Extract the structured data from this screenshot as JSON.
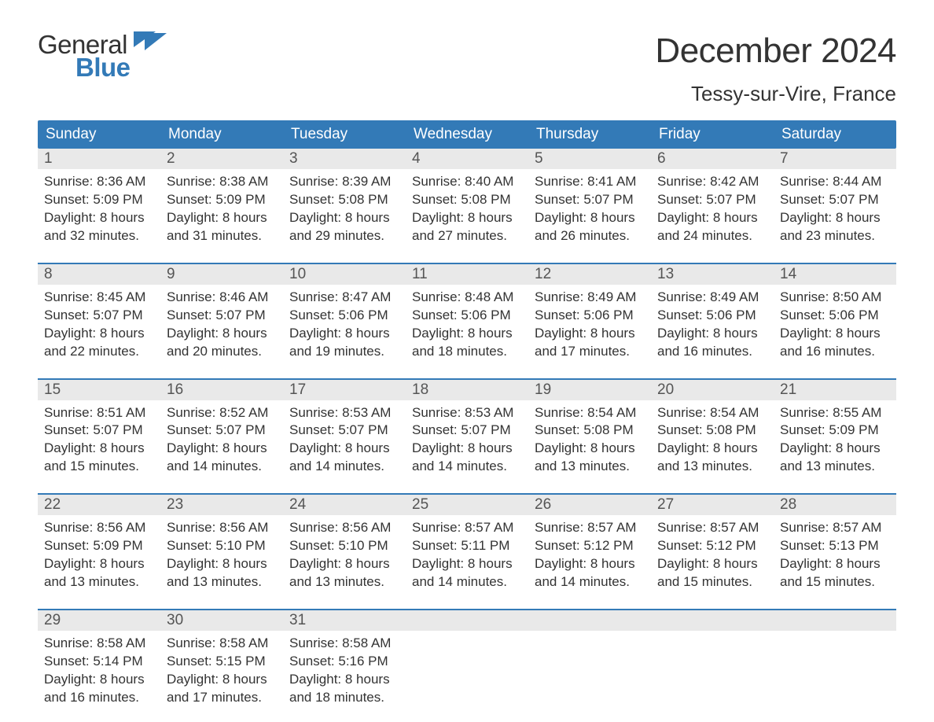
{
  "logo": {
    "line1": "General",
    "line2": "Blue",
    "text_color": "#333333",
    "accent_color": "#337ab7"
  },
  "title": {
    "month": "December 2024",
    "location": "Tessy-sur-Vire, France",
    "month_fontsize": 44,
    "location_fontsize": 26,
    "color": "#333333"
  },
  "colors": {
    "header_bg": "#337ab7",
    "header_text": "#ffffff",
    "daynum_bg": "#e9e9e9",
    "daynum_text": "#555555",
    "body_text": "#333333",
    "week_border": "#337ab7",
    "background": "#ffffff"
  },
  "layout": {
    "columns": 7,
    "rows": 5,
    "cell_fontsize": 17,
    "header_fontsize": 19,
    "daynum_fontsize": 19
  },
  "day_headers": [
    "Sunday",
    "Monday",
    "Tuesday",
    "Wednesday",
    "Thursday",
    "Friday",
    "Saturday"
  ],
  "weeks": [
    [
      {
        "num": "1",
        "sunrise": "Sunrise: 8:36 AM",
        "sunset": "Sunset: 5:09 PM",
        "daylight1": "Daylight: 8 hours",
        "daylight2": "and 32 minutes."
      },
      {
        "num": "2",
        "sunrise": "Sunrise: 8:38 AM",
        "sunset": "Sunset: 5:09 PM",
        "daylight1": "Daylight: 8 hours",
        "daylight2": "and 31 minutes."
      },
      {
        "num": "3",
        "sunrise": "Sunrise: 8:39 AM",
        "sunset": "Sunset: 5:08 PM",
        "daylight1": "Daylight: 8 hours",
        "daylight2": "and 29 minutes."
      },
      {
        "num": "4",
        "sunrise": "Sunrise: 8:40 AM",
        "sunset": "Sunset: 5:08 PM",
        "daylight1": "Daylight: 8 hours",
        "daylight2": "and 27 minutes."
      },
      {
        "num": "5",
        "sunrise": "Sunrise: 8:41 AM",
        "sunset": "Sunset: 5:07 PM",
        "daylight1": "Daylight: 8 hours",
        "daylight2": "and 26 minutes."
      },
      {
        "num": "6",
        "sunrise": "Sunrise: 8:42 AM",
        "sunset": "Sunset: 5:07 PM",
        "daylight1": "Daylight: 8 hours",
        "daylight2": "and 24 minutes."
      },
      {
        "num": "7",
        "sunrise": "Sunrise: 8:44 AM",
        "sunset": "Sunset: 5:07 PM",
        "daylight1": "Daylight: 8 hours",
        "daylight2": "and 23 minutes."
      }
    ],
    [
      {
        "num": "8",
        "sunrise": "Sunrise: 8:45 AM",
        "sunset": "Sunset: 5:07 PM",
        "daylight1": "Daylight: 8 hours",
        "daylight2": "and 22 minutes."
      },
      {
        "num": "9",
        "sunrise": "Sunrise: 8:46 AM",
        "sunset": "Sunset: 5:07 PM",
        "daylight1": "Daylight: 8 hours",
        "daylight2": "and 20 minutes."
      },
      {
        "num": "10",
        "sunrise": "Sunrise: 8:47 AM",
        "sunset": "Sunset: 5:06 PM",
        "daylight1": "Daylight: 8 hours",
        "daylight2": "and 19 minutes."
      },
      {
        "num": "11",
        "sunrise": "Sunrise: 8:48 AM",
        "sunset": "Sunset: 5:06 PM",
        "daylight1": "Daylight: 8 hours",
        "daylight2": "and 18 minutes."
      },
      {
        "num": "12",
        "sunrise": "Sunrise: 8:49 AM",
        "sunset": "Sunset: 5:06 PM",
        "daylight1": "Daylight: 8 hours",
        "daylight2": "and 17 minutes."
      },
      {
        "num": "13",
        "sunrise": "Sunrise: 8:49 AM",
        "sunset": "Sunset: 5:06 PM",
        "daylight1": "Daylight: 8 hours",
        "daylight2": "and 16 minutes."
      },
      {
        "num": "14",
        "sunrise": "Sunrise: 8:50 AM",
        "sunset": "Sunset: 5:06 PM",
        "daylight1": "Daylight: 8 hours",
        "daylight2": "and 16 minutes."
      }
    ],
    [
      {
        "num": "15",
        "sunrise": "Sunrise: 8:51 AM",
        "sunset": "Sunset: 5:07 PM",
        "daylight1": "Daylight: 8 hours",
        "daylight2": "and 15 minutes."
      },
      {
        "num": "16",
        "sunrise": "Sunrise: 8:52 AM",
        "sunset": "Sunset: 5:07 PM",
        "daylight1": "Daylight: 8 hours",
        "daylight2": "and 14 minutes."
      },
      {
        "num": "17",
        "sunrise": "Sunrise: 8:53 AM",
        "sunset": "Sunset: 5:07 PM",
        "daylight1": "Daylight: 8 hours",
        "daylight2": "and 14 minutes."
      },
      {
        "num": "18",
        "sunrise": "Sunrise: 8:53 AM",
        "sunset": "Sunset: 5:07 PM",
        "daylight1": "Daylight: 8 hours",
        "daylight2": "and 14 minutes."
      },
      {
        "num": "19",
        "sunrise": "Sunrise: 8:54 AM",
        "sunset": "Sunset: 5:08 PM",
        "daylight1": "Daylight: 8 hours",
        "daylight2": "and 13 minutes."
      },
      {
        "num": "20",
        "sunrise": "Sunrise: 8:54 AM",
        "sunset": "Sunset: 5:08 PM",
        "daylight1": "Daylight: 8 hours",
        "daylight2": "and 13 minutes."
      },
      {
        "num": "21",
        "sunrise": "Sunrise: 8:55 AM",
        "sunset": "Sunset: 5:09 PM",
        "daylight1": "Daylight: 8 hours",
        "daylight2": "and 13 minutes."
      }
    ],
    [
      {
        "num": "22",
        "sunrise": "Sunrise: 8:56 AM",
        "sunset": "Sunset: 5:09 PM",
        "daylight1": "Daylight: 8 hours",
        "daylight2": "and 13 minutes."
      },
      {
        "num": "23",
        "sunrise": "Sunrise: 8:56 AM",
        "sunset": "Sunset: 5:10 PM",
        "daylight1": "Daylight: 8 hours",
        "daylight2": "and 13 minutes."
      },
      {
        "num": "24",
        "sunrise": "Sunrise: 8:56 AM",
        "sunset": "Sunset: 5:10 PM",
        "daylight1": "Daylight: 8 hours",
        "daylight2": "and 13 minutes."
      },
      {
        "num": "25",
        "sunrise": "Sunrise: 8:57 AM",
        "sunset": "Sunset: 5:11 PM",
        "daylight1": "Daylight: 8 hours",
        "daylight2": "and 14 minutes."
      },
      {
        "num": "26",
        "sunrise": "Sunrise: 8:57 AM",
        "sunset": "Sunset: 5:12 PM",
        "daylight1": "Daylight: 8 hours",
        "daylight2": "and 14 minutes."
      },
      {
        "num": "27",
        "sunrise": "Sunrise: 8:57 AM",
        "sunset": "Sunset: 5:12 PM",
        "daylight1": "Daylight: 8 hours",
        "daylight2": "and 15 minutes."
      },
      {
        "num": "28",
        "sunrise": "Sunrise: 8:57 AM",
        "sunset": "Sunset: 5:13 PM",
        "daylight1": "Daylight: 8 hours",
        "daylight2": "and 15 minutes."
      }
    ],
    [
      {
        "num": "29",
        "sunrise": "Sunrise: 8:58 AM",
        "sunset": "Sunset: 5:14 PM",
        "daylight1": "Daylight: 8 hours",
        "daylight2": "and 16 minutes."
      },
      {
        "num": "30",
        "sunrise": "Sunrise: 8:58 AM",
        "sunset": "Sunset: 5:15 PM",
        "daylight1": "Daylight: 8 hours",
        "daylight2": "and 17 minutes."
      },
      {
        "num": "31",
        "sunrise": "Sunrise: 8:58 AM",
        "sunset": "Sunset: 5:16 PM",
        "daylight1": "Daylight: 8 hours",
        "daylight2": "and 18 minutes."
      },
      {
        "num": "",
        "sunrise": "",
        "sunset": "",
        "daylight1": "",
        "daylight2": ""
      },
      {
        "num": "",
        "sunrise": "",
        "sunset": "",
        "daylight1": "",
        "daylight2": ""
      },
      {
        "num": "",
        "sunrise": "",
        "sunset": "",
        "daylight1": "",
        "daylight2": ""
      },
      {
        "num": "",
        "sunrise": "",
        "sunset": "",
        "daylight1": "",
        "daylight2": ""
      }
    ]
  ]
}
